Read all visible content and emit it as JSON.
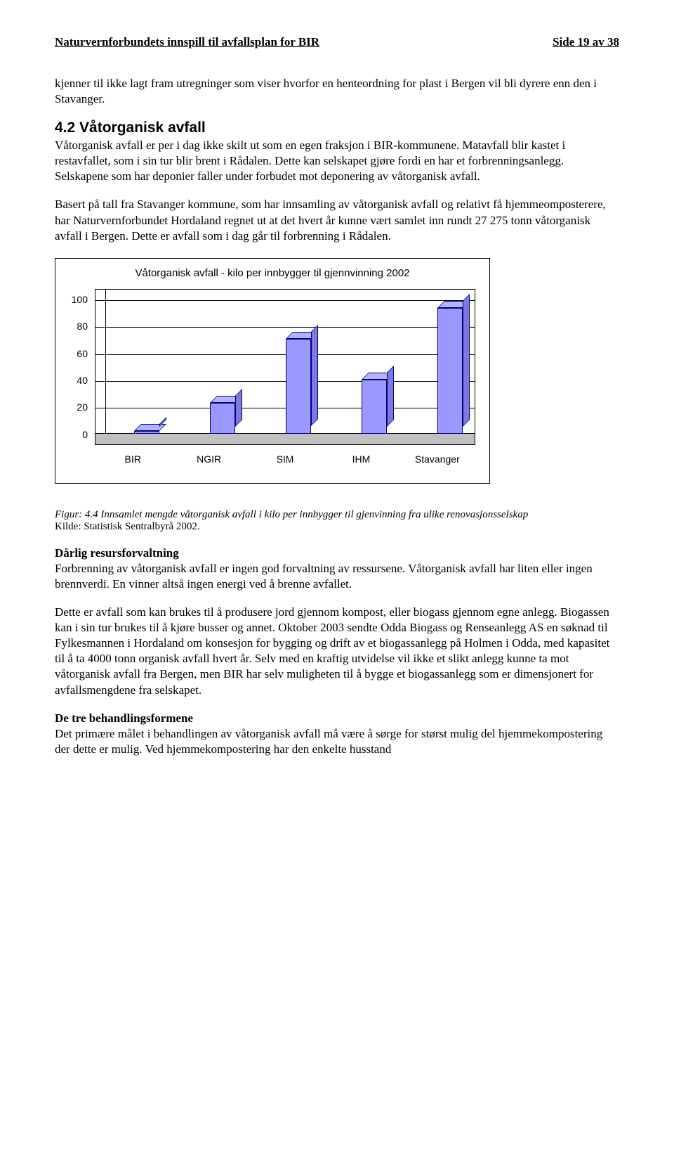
{
  "header": {
    "title_left": "Naturvernforbundets innspill til avfallsplan for BIR",
    "title_right": "Side 19 av 38"
  },
  "intro": {
    "para1": "kjenner til ikke lagt fram utregninger som viser hvorfor en henteordning for plast i Bergen vil bli dyrere enn den i Stavanger."
  },
  "section42": {
    "heading": "4.2 Våtorganisk avfall",
    "para1": "Våtorganisk avfall er per i dag ikke skilt ut som en egen fraksjon i BIR-kommunene. Matavfall blir kastet i restavfallet, som i sin tur blir brent i Rådalen. Dette kan selskapet gjøre fordi en har et forbrenningsanlegg. Selskapene som har deponier faller under forbudet mot deponering av våtorganisk avfall.",
    "para2": "Basert på tall fra Stavanger kommune, som har innsamling av våtorganisk avfall og relativt få hjemmeomposterere, har Naturvernforbundet Hordaland regnet ut at det hvert år kunne vært samlet inn rundt 27 275 tonn våtorganisk avfall i Bergen. Dette er avfall som i dag går til forbrenning i Rådalen."
  },
  "chart": {
    "type": "bar",
    "title": "Våtorganisk avfall - kilo per innbygger til gjennvinning 2002",
    "categories": [
      "BIR",
      "NGIR",
      "SIM",
      "IHM",
      "Stavanger"
    ],
    "values": [
      2,
      23,
      70,
      40,
      93
    ],
    "ylim_max": 100,
    "yticks": [
      0,
      20,
      40,
      60,
      80,
      100
    ],
    "bar_color": "#9999ff",
    "bar_side_color": "#7a7ae0",
    "bar_top_color": "#b3b3ff",
    "bar_border": "#000080",
    "floor_color": "#c0c0c0",
    "background_color": "#ffffff",
    "title_fontsize": 15,
    "label_fontsize": 14
  },
  "caption": {
    "figline": "Figur: 4.4 Innsamlet mengde våtorganisk avfall i kilo per innbygger til gjenvinning fra ulike renovasjonsselskap",
    "source": "Kilde: Statistisk Sentralbyrå 2002."
  },
  "resurs": {
    "heading": "Dårlig resursforvaltning",
    "para1": "Forbrenning av våtorganisk avfall er ingen god forvaltning av ressursene. Våtorganisk avfall har liten eller ingen brennverdi. En vinner altså ingen energi ved å brenne avfallet.",
    "para2": "Dette er avfall som kan brukes til å produsere jord gjennom kompost, eller biogass gjennom egne anlegg. Biogassen kan i sin tur brukes til å kjøre busser og annet. Oktober 2003 sendte Odda Biogass og Renseanlegg AS en søknad til Fylkesmannen i Hordaland om konsesjon for bygging og drift av et biogassanlegg på Holmen i Odda, med kapasitet til å ta 4000 tonn organisk avfall hvert år. Selv med en kraftig utvidelse vil ikke et slikt anlegg kunne ta mot våtorganisk avfall fra Bergen, men BIR har selv muligheten til å bygge et biogassanlegg som er dimensjonert for avfallsmengdene fra selskapet."
  },
  "behandling": {
    "heading": "De tre behandlingsformene",
    "para1": "Det primære målet i behandlingen av våtorganisk avfall må være å sørge for størst mulig del hjemmekompostering der dette er mulig. Ved hjemmekompostering har den enkelte husstand"
  }
}
